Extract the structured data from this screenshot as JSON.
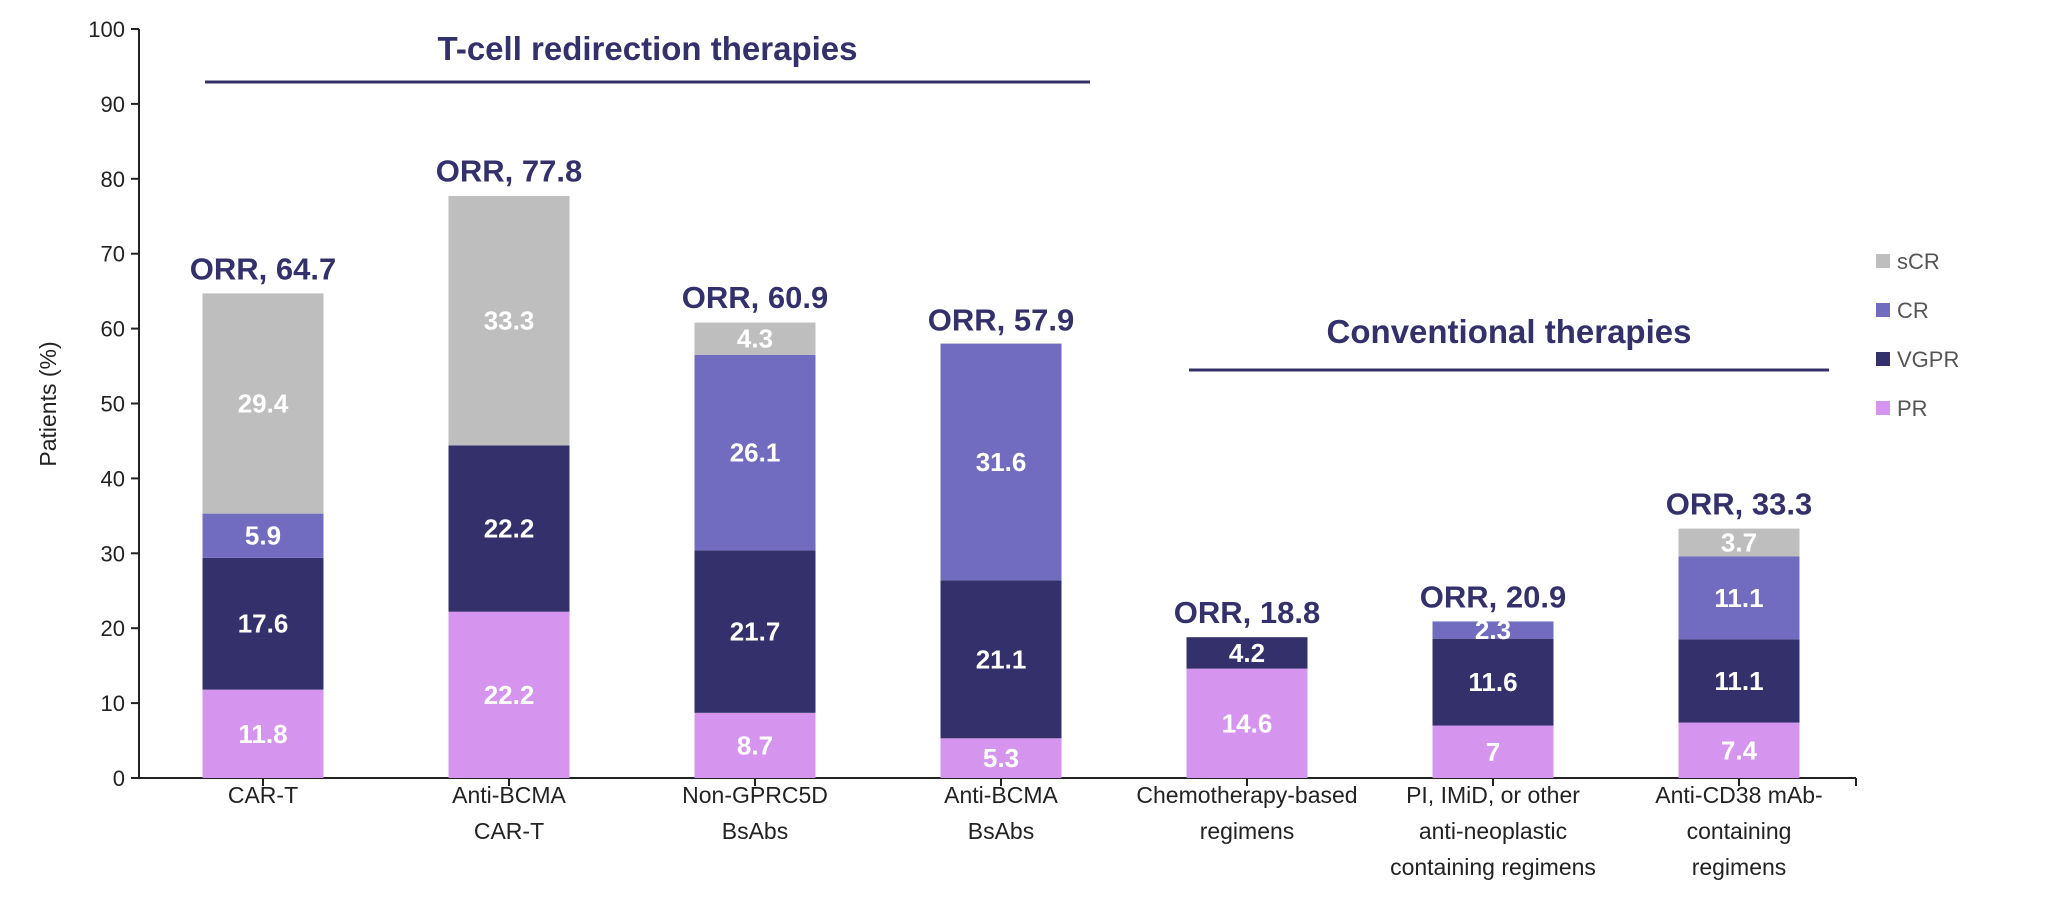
{
  "chart_data": {
    "type": "bar",
    "stacked": true,
    "title": "",
    "xlabel": "",
    "ylabel": "Patients (%)",
    "ylim": [
      0,
      100
    ],
    "yticks": [
      0,
      10,
      20,
      30,
      40,
      50,
      60,
      70,
      80,
      90,
      100
    ],
    "grid": false,
    "legend_position": "right",
    "categories": [
      [
        "CAR-T"
      ],
      [
        "Anti-BCMA",
        "CAR-T"
      ],
      [
        "Non-GPRC5D",
        "BsAbs"
      ],
      [
        "Anti-BCMA",
        "BsAbs"
      ],
      [
        "Chemotherapy-based",
        "regimens"
      ],
      [
        "PI, IMiD, or other",
        "anti-neoplastic",
        "containing regimens"
      ],
      [
        "Anti-CD38 mAb-",
        "containing",
        "regimens"
      ]
    ],
    "series": [
      {
        "name": "PR",
        "color": "#d595ee",
        "values": [
          11.8,
          22.2,
          8.7,
          5.3,
          14.6,
          7,
          7.4
        ]
      },
      {
        "name": "VGPR",
        "color": "#34306b",
        "values": [
          17.6,
          22.2,
          21.7,
          21.1,
          4.2,
          11.6,
          11.1
        ]
      },
      {
        "name": "CR",
        "color": "#716cbf",
        "values": [
          5.9,
          null,
          26.1,
          31.6,
          null,
          2.3,
          11.1
        ]
      },
      {
        "name": "sCR",
        "color": "#bebebe",
        "values": [
          29.4,
          33.3,
          4.3,
          null,
          null,
          null,
          3.7
        ]
      }
    ],
    "totals_labels": [
      "ORR, 64.7",
      "ORR, 77.8",
      "ORR, 60.9",
      "ORR, 57.9",
      "ORR, 18.8",
      "ORR, 20.9",
      "ORR, 33.3"
    ],
    "totals": [
      64.7,
      77.8,
      60.9,
      57.9,
      18.8,
      20.9,
      33.3
    ],
    "legend_order": [
      "sCR",
      "CR",
      "VGPR",
      "PR"
    ],
    "groups": [
      {
        "label": "T-cell redirection therapies",
        "categories": [
          0,
          1,
          2,
          3
        ]
      },
      {
        "label": "Conventional therapies",
        "categories": [
          4,
          5,
          6
        ]
      }
    ],
    "accent_color": "#34306b"
  }
}
